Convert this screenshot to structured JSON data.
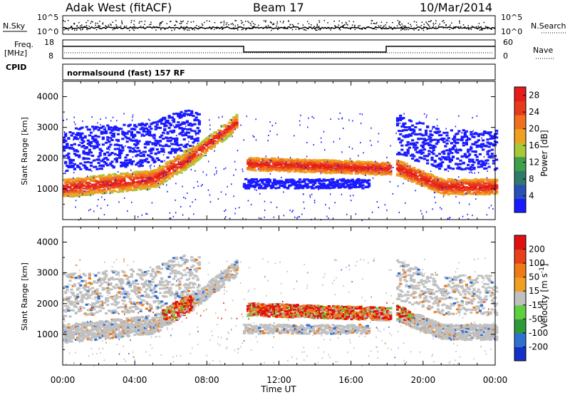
{
  "header": {
    "site": "Adak West (fitACF)",
    "beam": "Beam 17",
    "date": "10/Mar/2014"
  },
  "panels": {
    "nsky_label": "N.Sky",
    "nsearch_label": "N.Search",
    "noise_ticks": [
      "10^5",
      "10^0"
    ],
    "freq_label_1": "Freq.",
    "freq_label_2": "[MHz]",
    "freq_ticks": [
      "18",
      "8"
    ],
    "nave_label": "Nave",
    "nave_ticks": [
      "60",
      "0"
    ],
    "cpid_label": "CPID",
    "cpid_text": "normalsound (fast) 157 RF"
  },
  "colors": {
    "power_scale": [
      "#1a1aff",
      "#2a50b8",
      "#2f7a6a",
      "#3f9f4a",
      "#a8c83a",
      "#f0a020",
      "#f07020",
      "#e83a1a",
      "#e81a1a"
    ],
    "velocity_scale": [
      "#1530c8",
      "#3070d0",
      "#2e9a3a",
      "#5ed040",
      "#c0c0c0",
      "#f0a020",
      "#ee7a18",
      "#e8401a",
      "#e01010"
    ]
  },
  "chart_data": [
    {
      "type": "heatmap",
      "title": "",
      "xlabel": "",
      "ylabel": "Slant Range [km]",
      "xlim": [
        0,
        24
      ],
      "ylim": [
        0,
        4500
      ],
      "x_ticks": [
        "00:00",
        "04:00",
        "08:00",
        "12:00",
        "16:00",
        "20:00",
        "00:00"
      ],
      "y_ticks": [
        1000,
        2000,
        3000,
        4000
      ],
      "colorbar": {
        "label": "Power [dB]",
        "ticks": [
          4,
          8,
          12,
          16,
          20,
          24,
          28
        ],
        "range": [
          0,
          30
        ]
      }
    },
    {
      "type": "heatmap",
      "title": "",
      "xlabel": "Time UT",
      "ylabel": "Slant Range [km]",
      "xlim": [
        0,
        24
      ],
      "ylim": [
        0,
        4500
      ],
      "x_ticks": [
        "00:00",
        "04:00",
        "08:00",
        "12:00",
        "16:00",
        "20:00",
        "00:00"
      ],
      "y_ticks": [
        1000,
        2000,
        3000,
        4000
      ],
      "colorbar": {
        "label": "Velocity [m s^-1]",
        "ticks": [
          "200",
          "100",
          "50",
          "15",
          "-15",
          "-50",
          "-100",
          "-200"
        ],
        "range": [
          -250,
          250
        ]
      }
    }
  ]
}
